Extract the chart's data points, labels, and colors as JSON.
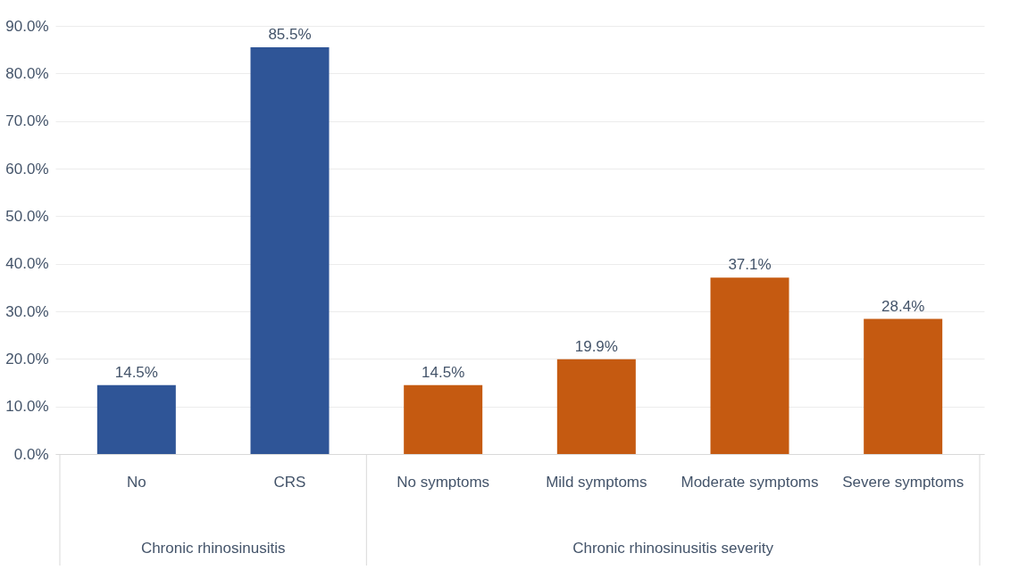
{
  "chart_data": {
    "type": "bar",
    "categories": [
      "No",
      "CRS",
      "No symptoms",
      "Mild symptoms",
      "Moderate symptoms",
      "Severe symptoms"
    ],
    "series": [
      {
        "color": "#2f5597",
        "values": [
          14.5,
          85.5,
          null,
          null,
          null,
          null
        ],
        "value_labels": [
          "14.5%",
          "85.5%",
          null,
          null,
          null,
          null
        ]
      },
      {
        "color": "#c55a11",
        "values": [
          null,
          null,
          14.5,
          19.9,
          37.1,
          28.4
        ],
        "value_labels": [
          null,
          null,
          "14.5%",
          "19.9%",
          "37.1%",
          "28.4%"
        ]
      }
    ],
    "ylim": [
      0,
      90
    ],
    "yticks": [
      {
        "value": 0,
        "label": "0.0%"
      },
      {
        "value": 10,
        "label": "10.0%"
      },
      {
        "value": 20,
        "label": "20.0%"
      },
      {
        "value": 30,
        "label": "30.0%"
      },
      {
        "value": 40,
        "label": "40.0%"
      },
      {
        "value": 50,
        "label": "50.0%"
      },
      {
        "value": 60,
        "label": "60.0%"
      },
      {
        "value": 70,
        "label": "70.0%"
      },
      {
        "value": 80,
        "label": "80.0%"
      },
      {
        "value": 90,
        "label": "90.0%"
      }
    ],
    "annotations": [
      "Chronic rhinosinusitis",
      "Chronic rhinosinusitis severity"
    ],
    "grid": "y"
  }
}
